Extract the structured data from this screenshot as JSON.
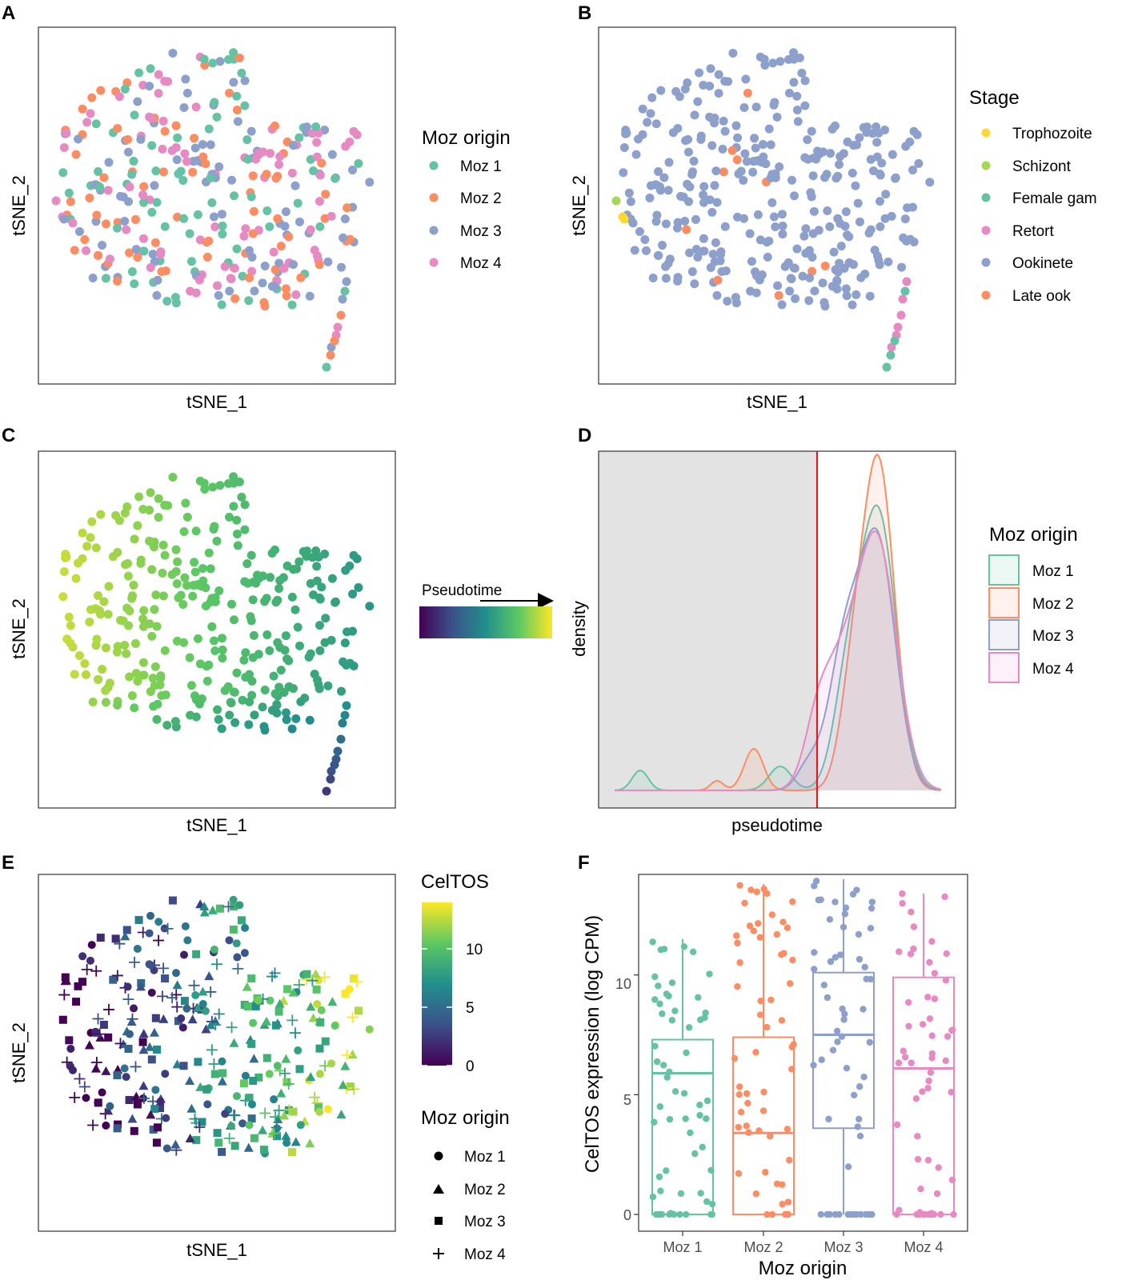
{
  "chart_data": [
    {
      "panel": "A",
      "type": "scatter",
      "xlabel": "tSNE_1",
      "ylabel": "tSNE_2",
      "legend": {
        "title": "Moz origin",
        "position": "right",
        "items": [
          {
            "label": "Moz 1",
            "color": "#66c2a5"
          },
          {
            "label": "Moz 2",
            "color": "#fc8d62"
          },
          {
            "label": "Moz 3",
            "color": "#8da0cb"
          },
          {
            "label": "Moz 4",
            "color": "#e78ac3"
          }
        ]
      }
    },
    {
      "panel": "B",
      "type": "scatter",
      "xlabel": "tSNE_1",
      "ylabel": "tSNE_2",
      "legend": {
        "title": "Stage",
        "position": "right",
        "items": [
          {
            "label": "Trophozoite",
            "color": "#ffd92f"
          },
          {
            "label": "Schizont",
            "color": "#a6d854"
          },
          {
            "label": "Female gam",
            "color": "#66c2a5"
          },
          {
            "label": "Retort",
            "color": "#e78ac3"
          },
          {
            "label": "Ookinete",
            "color": "#8da0cb"
          },
          {
            "label": "Late ook",
            "color": "#fc8d62"
          }
        ]
      }
    },
    {
      "panel": "C",
      "type": "scatter",
      "xlabel": "tSNE_1",
      "ylabel": "tSNE_2",
      "colorbar": {
        "title": "Pseudotime",
        "colors": [
          "#440154",
          "#3b528b",
          "#21908c",
          "#5dc863",
          "#fde725"
        ]
      }
    },
    {
      "panel": "D",
      "type": "area",
      "xlabel": "pseudotime",
      "ylabel": "density",
      "shaded_region": "left of threshold",
      "threshold_line_color": "#e31a1c",
      "legend": {
        "title": "Moz origin",
        "position": "right",
        "items": [
          {
            "label": "Moz 1",
            "color": "#66c2a5"
          },
          {
            "label": "Moz 2",
            "color": "#fc8d62"
          },
          {
            "label": "Moz 3",
            "color": "#8da0cb"
          },
          {
            "label": "Moz 4",
            "color": "#e78ac3"
          }
        ]
      }
    },
    {
      "panel": "E",
      "type": "scatter",
      "xlabel": "tSNE_1",
      "ylabel": "tSNE_2",
      "colorbar": {
        "title": "CelTOS",
        "ticks": [
          "10",
          "5",
          "0"
        ],
        "range": [
          0,
          14
        ],
        "colors": [
          "#440154",
          "#3b528b",
          "#21908c",
          "#5dc863",
          "#fde725"
        ]
      },
      "shape_legend": {
        "title": "Moz origin",
        "items": [
          {
            "label": "Moz 1",
            "shape": "circle"
          },
          {
            "label": "Moz 2",
            "shape": "triangle"
          },
          {
            "label": "Moz 3",
            "shape": "square"
          },
          {
            "label": "Moz 4",
            "shape": "plus"
          }
        ]
      }
    },
    {
      "panel": "F",
      "type": "box",
      "xlabel": "Moz origin",
      "ylabel": "CelTOS expression (log CPM)",
      "ylim": [
        -0.7,
        14.2
      ],
      "yticks": [
        "0",
        "5",
        "10"
      ],
      "categories": [
        "Moz 1",
        "Moz 2",
        "Moz 3",
        "Moz 4"
      ],
      "colors": [
        "#66c2a5",
        "#fc8d62",
        "#8da0cb",
        "#e78ac3"
      ],
      "boxes": [
        {
          "name": "Moz 1",
          "q1": 0,
          "median": 5.9,
          "q3": 7.3,
          "whisker_low": 0,
          "whisker_high": 11.5
        },
        {
          "name": "Moz 2",
          "q1": 0,
          "median": 3.4,
          "q3": 7.4,
          "whisker_low": 0,
          "whisker_high": 13.8
        },
        {
          "name": "Moz 3",
          "q1": 3.6,
          "median": 7.5,
          "q3": 10.1,
          "whisker_low": 0,
          "whisker_high": 14.0
        },
        {
          "name": "Moz 4",
          "q1": 0,
          "median": 6.1,
          "q3": 9.9,
          "whisker_low": 0,
          "whisker_high": 13.4
        }
      ]
    }
  ]
}
